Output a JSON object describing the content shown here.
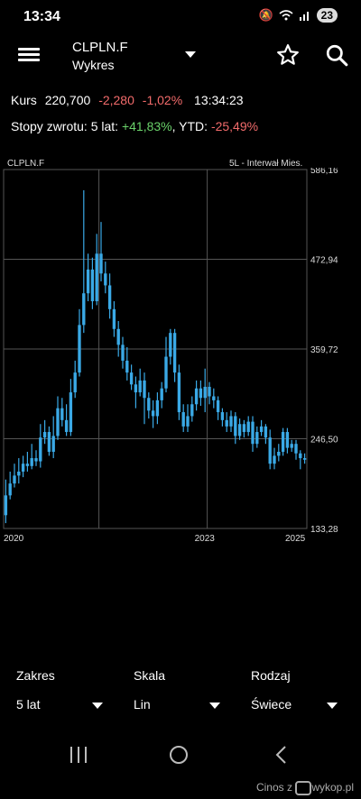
{
  "status_bar": {
    "time": "13:34",
    "badge": "23"
  },
  "header": {
    "ticker": "CLPLN.F",
    "subtitle": "Wykres"
  },
  "quote": {
    "label": "Kurs",
    "price": "220,700",
    "change": "-2,280",
    "change_pct": "-1,02%",
    "time": "13:34:23"
  },
  "returns": {
    "label": "Stopy zwrotu: 5 lat:",
    "five_year": "+41,83%",
    "ytd_label": "YTD:",
    "ytd": "-25,49%"
  },
  "chart_meta": {
    "title": "CLPLN.F",
    "interval": "5L - Interwał Mies."
  },
  "chart_data": {
    "type": "candlestick",
    "y_ticks": [
      "586,16",
      "472,94",
      "359,72",
      "246,50",
      "133,28"
    ],
    "ylim": [
      133.28,
      586.16
    ],
    "x_ticks": [
      "2020",
      "2023",
      "2025"
    ],
    "up_color": "#3aa9e6",
    "candles": [
      [
        150,
        175,
        140,
        195
      ],
      [
        175,
        190,
        170,
        205
      ],
      [
        190,
        200,
        185,
        215
      ],
      [
        200,
        205,
        190,
        222
      ],
      [
        205,
        215,
        198,
        225
      ],
      [
        215,
        212,
        205,
        230
      ],
      [
        212,
        222,
        208,
        240
      ],
      [
        222,
        218,
        212,
        232
      ],
      [
        218,
        248,
        210,
        265
      ],
      [
        248,
        255,
        240,
        270
      ],
      [
        255,
        230,
        225,
        262
      ],
      [
        230,
        250,
        222,
        275
      ],
      [
        250,
        285,
        245,
        300
      ],
      [
        285,
        270,
        262,
        298
      ],
      [
        270,
        255,
        250,
        290
      ],
      [
        255,
        305,
        250,
        322
      ],
      [
        305,
        330,
        298,
        345
      ],
      [
        330,
        390,
        325,
        410
      ],
      [
        390,
        430,
        380,
        560
      ],
      [
        430,
        460,
        420,
        480
      ],
      [
        460,
        420,
        410,
        475
      ],
      [
        420,
        480,
        415,
        505
      ],
      [
        480,
        455,
        445,
        520
      ],
      [
        455,
        440,
        430,
        470
      ],
      [
        440,
        410,
        398,
        455
      ],
      [
        410,
        385,
        375,
        420
      ],
      [
        385,
        365,
        350,
        395
      ],
      [
        365,
        345,
        335,
        375
      ],
      [
        345,
        330,
        320,
        362
      ],
      [
        330,
        315,
        308,
        340
      ],
      [
        315,
        305,
        285,
        325
      ],
      [
        305,
        320,
        300,
        335
      ],
      [
        320,
        298,
        265,
        330
      ],
      [
        298,
        282,
        272,
        305
      ],
      [
        282,
        275,
        260,
        295
      ],
      [
        275,
        295,
        265,
        305
      ],
      [
        295,
        310,
        285,
        318
      ],
      [
        310,
        350,
        305,
        375
      ],
      [
        350,
        380,
        340,
        385
      ],
      [
        380,
        330,
        318,
        385
      ],
      [
        330,
        280,
        270,
        340
      ],
      [
        280,
        262,
        255,
        290
      ],
      [
        262,
        275,
        255,
        290
      ],
      [
        275,
        290,
        268,
        300
      ],
      [
        290,
        310,
        282,
        320
      ],
      [
        310,
        298,
        288,
        320
      ],
      [
        298,
        312,
        280,
        335
      ],
      [
        312,
        300,
        290,
        318
      ],
      [
        300,
        295,
        285,
        310
      ],
      [
        295,
        280,
        270,
        300
      ],
      [
        280,
        270,
        262,
        285
      ],
      [
        270,
        262,
        255,
        280
      ],
      [
        262,
        275,
        255,
        282
      ],
      [
        275,
        250,
        240,
        280
      ],
      [
        250,
        265,
        245,
        272
      ],
      [
        265,
        255,
        248,
        270
      ],
      [
        255,
        268,
        250,
        275
      ],
      [
        268,
        240,
        230,
        275
      ],
      [
        240,
        255,
        235,
        262
      ],
      [
        255,
        262,
        250,
        270
      ],
      [
        262,
        248,
        240,
        265
      ],
      [
        248,
        215,
        208,
        258
      ],
      [
        215,
        225,
        208,
        235
      ],
      [
        225,
        230,
        218,
        240
      ],
      [
        230,
        255,
        225,
        260
      ],
      [
        255,
        235,
        228,
        260
      ],
      [
        235,
        240,
        230,
        245
      ],
      [
        240,
        228,
        220,
        245
      ],
      [
        228,
        222,
        208,
        232
      ],
      [
        222,
        220,
        215,
        228
      ]
    ]
  },
  "controls": [
    {
      "label": "Zakres",
      "value": "5 lat"
    },
    {
      "label": "Skala",
      "value": "Lin"
    },
    {
      "label": "Rodzaj",
      "value": "Świece"
    }
  ],
  "watermark": {
    "user": "Cinos",
    "sep": "z",
    "site": "wykop.pl"
  }
}
